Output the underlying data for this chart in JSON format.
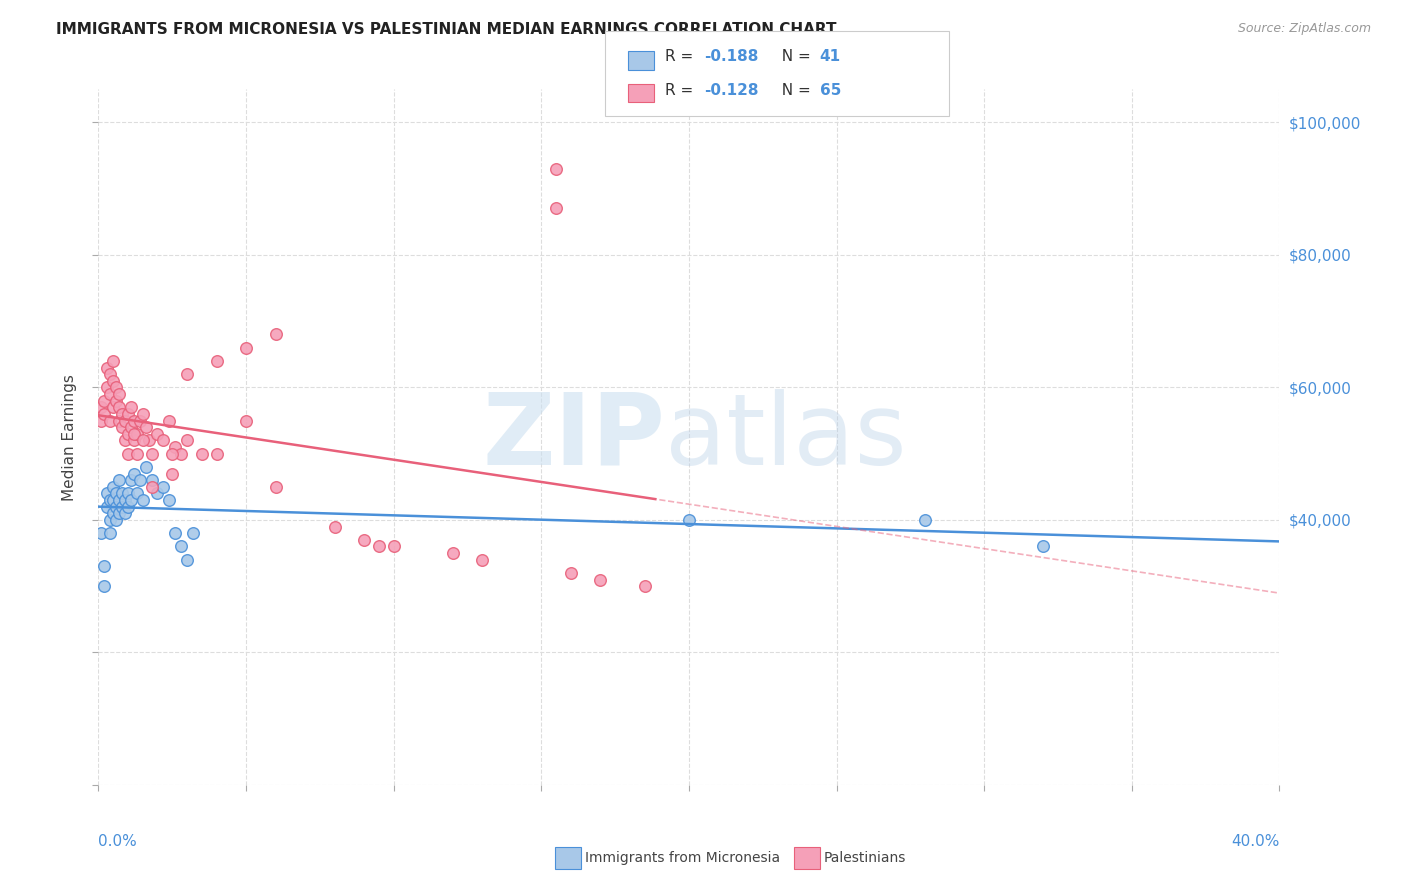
{
  "title": "IMMIGRANTS FROM MICRONESIA VS PALESTINIAN MEDIAN EARNINGS CORRELATION CHART",
  "source": "Source: ZipAtlas.com",
  "ylabel": "Median Earnings",
  "xlim": [
    0.0,
    0.4
  ],
  "ylim": [
    0,
    105000
  ],
  "color_micro": "#a8c8e8",
  "color_pale": "#f5a0b8",
  "trendline_micro_color": "#4a90d9",
  "trendline_pale_color": "#e8607a",
  "micro_scatter_x": [
    0.001,
    0.002,
    0.002,
    0.003,
    0.003,
    0.004,
    0.004,
    0.004,
    0.005,
    0.005,
    0.005,
    0.006,
    0.006,
    0.006,
    0.007,
    0.007,
    0.007,
    0.008,
    0.008,
    0.009,
    0.009,
    0.01,
    0.01,
    0.011,
    0.011,
    0.012,
    0.013,
    0.014,
    0.015,
    0.016,
    0.018,
    0.02,
    0.022,
    0.024,
    0.026,
    0.028,
    0.03,
    0.032,
    0.2,
    0.28,
    0.32
  ],
  "micro_scatter_y": [
    38000,
    33000,
    30000,
    42000,
    44000,
    40000,
    43000,
    38000,
    41000,
    43000,
    45000,
    40000,
    42000,
    44000,
    41000,
    43000,
    46000,
    42000,
    44000,
    41000,
    43000,
    44000,
    42000,
    46000,
    43000,
    47000,
    44000,
    46000,
    43000,
    48000,
    46000,
    44000,
    45000,
    43000,
    38000,
    36000,
    34000,
    38000,
    40000,
    40000,
    36000
  ],
  "pale_scatter_x": [
    0.001,
    0.001,
    0.002,
    0.002,
    0.003,
    0.003,
    0.004,
    0.004,
    0.004,
    0.005,
    0.005,
    0.005,
    0.006,
    0.006,
    0.007,
    0.007,
    0.007,
    0.008,
    0.008,
    0.009,
    0.009,
    0.01,
    0.01,
    0.01,
    0.011,
    0.011,
    0.012,
    0.012,
    0.013,
    0.013,
    0.014,
    0.015,
    0.016,
    0.017,
    0.018,
    0.02,
    0.022,
    0.024,
    0.026,
    0.028,
    0.03,
    0.035,
    0.04,
    0.05,
    0.06,
    0.08,
    0.09,
    0.1,
    0.12,
    0.13,
    0.155,
    0.16,
    0.17,
    0.185,
    0.025,
    0.012,
    0.06,
    0.05,
    0.04,
    0.03,
    0.095,
    0.015,
    0.155,
    0.025,
    0.018
  ],
  "pale_scatter_y": [
    55000,
    57000,
    56000,
    58000,
    60000,
    63000,
    55000,
    59000,
    62000,
    57000,
    61000,
    64000,
    58000,
    60000,
    55000,
    57000,
    59000,
    54000,
    56000,
    52000,
    55000,
    50000,
    53000,
    56000,
    54000,
    57000,
    52000,
    55000,
    50000,
    53000,
    55000,
    56000,
    54000,
    52000,
    50000,
    53000,
    52000,
    55000,
    51000,
    50000,
    52000,
    50000,
    50000,
    55000,
    45000,
    39000,
    37000,
    36000,
    35000,
    34000,
    87000,
    32000,
    31000,
    30000,
    50000,
    53000,
    68000,
    66000,
    64000,
    62000,
    36000,
    52000,
    93000,
    47000,
    45000
  ]
}
